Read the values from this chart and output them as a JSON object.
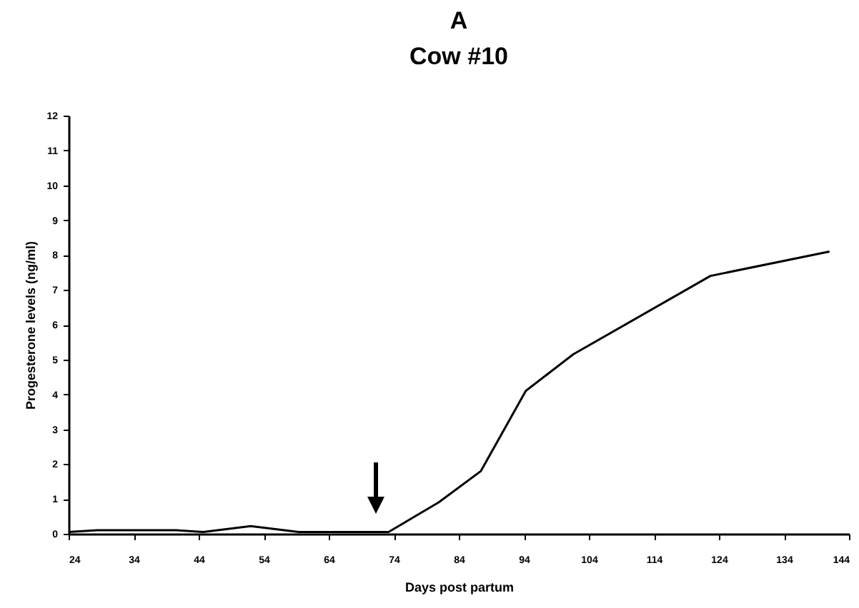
{
  "chart_data": {
    "type": "line",
    "title": "A",
    "subtitle": "Cow #10",
    "xlabel": "Days post partum",
    "ylabel": "Progesterone levels (ng/ml)",
    "x": [
      24,
      28.4,
      40.6,
      44.7,
      52,
      59.4,
      73.2,
      80.9,
      87.4,
      94.3,
      101.6,
      122.7,
      141
    ],
    "series": [
      {
        "color": "#000000",
        "values": [
          0.05,
          0.1,
          0.1,
          0.05,
          0.22,
          0.05,
          0.05,
          0.9,
          1.8,
          4.1,
          5.15,
          7.4,
          8.1
        ]
      }
    ],
    "xlim": [
      24,
      144
    ],
    "xticks": [
      24,
      34,
      44,
      54,
      64,
      74,
      84,
      94,
      104,
      114,
      124,
      134,
      144
    ],
    "ylim": [
      0,
      12
    ],
    "yticks": [
      0,
      1,
      2,
      3,
      4,
      5,
      6,
      7,
      8,
      9,
      10,
      11,
      12
    ],
    "grid": false,
    "marker": "none",
    "line_style": "solid"
  }
}
